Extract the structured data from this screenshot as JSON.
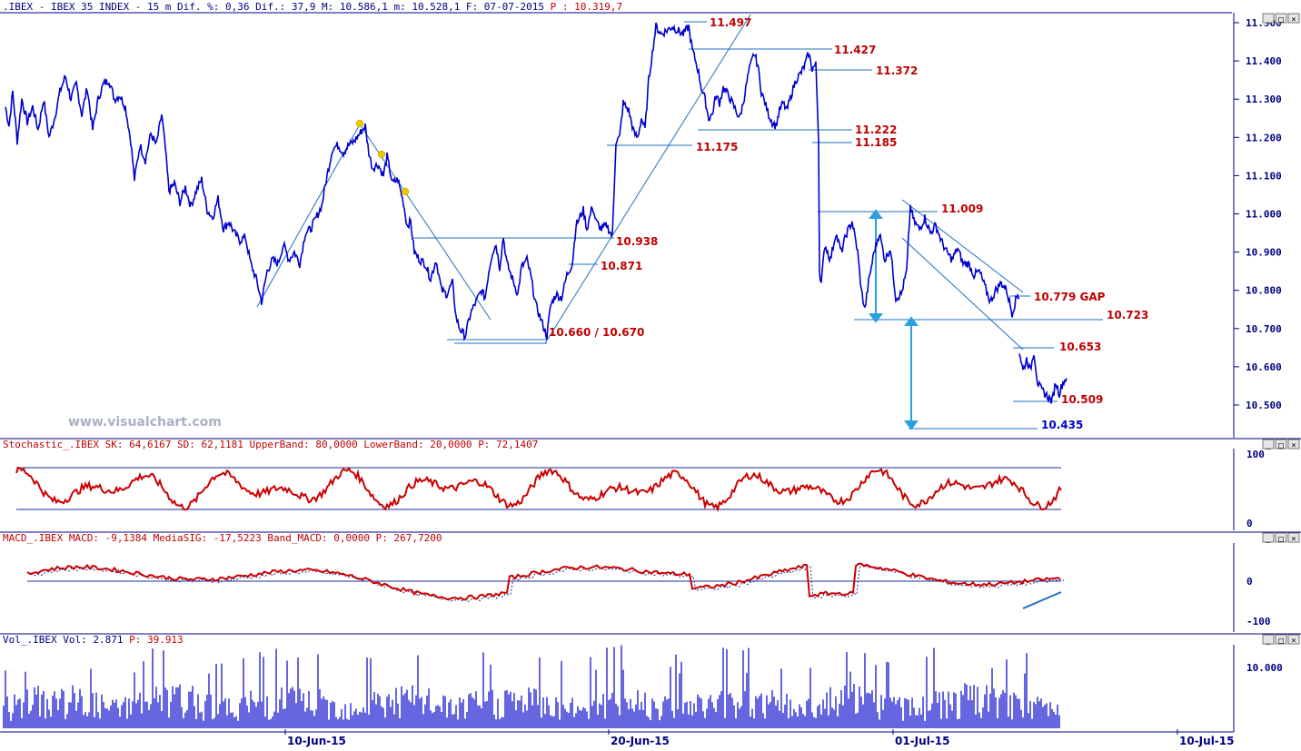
{
  "colors": {
    "price": "#0000cc",
    "ind": "#cc0000",
    "line": "#1f6fbf",
    "axis": "#000080",
    "annot": "#c00000",
    "arrow": "#2aa0e0",
    "pivot": "#e8c800"
  },
  "header": {
    "main": ".IBEX - IBEX 35 INDEX -  15 m Dif. %: 0,36 Dif.: 37,9 M: 10.586,1 m: 10.528,1 F: 07-07-2015",
    "main_p": "P : 10.319,7"
  },
  "watermark": "www.visualchart.com",
  "window_buttons": [
    "_",
    "□",
    "×"
  ],
  "price_axis": [
    "11.500",
    "11.400",
    "11.300",
    "11.200",
    "11.100",
    "11.000",
    "10.900",
    "10.800",
    "10.700",
    "10.600",
    "10.500"
  ],
  "dates": [
    "10-Jun-15",
    "20-Jun-15",
    "01-Jul-15",
    "10-Jul-15"
  ],
  "annotations": {
    "a11497": "11.497",
    "a11427": "11.427",
    "a11372": "11.372",
    "a11222": "11.222",
    "a11185": "11.185",
    "a11175": "11.175",
    "a11009": "11.009",
    "a10938": "10.938",
    "a10871": "10.871",
    "a10779": "10.779 GAP",
    "a10723": "10.723",
    "a10660": "10.660 / 10.670",
    "a10653": "10.653",
    "a10509": "10.509",
    "a10435": "10.435"
  },
  "stoch": {
    "header": "Stochastic_.IBEX SK: 64,6167 SD: 62,1181 UpperBand: 80,0000 LowerBand: 20,0000",
    "p": "P: 72,1407",
    "ticks": [
      "100",
      "0"
    ]
  },
  "macd": {
    "header": "MACD_.IBEX MACD: -9,1384 MediaSIG: -17,5223 Band_MACD: 0,0000",
    "p": "P: 267,7200",
    "ticks": [
      "0",
      "-100"
    ]
  },
  "vol": {
    "header": "Vol_.IBEX Vol: 2.871",
    "p": "P: 39.913",
    "ticks": [
      "10.000"
    ]
  },
  "chart_data": {
    "type": "line",
    "instrument": "IBEX 35 INDEX",
    "interval": "15 m",
    "x_ticks": [
      "10-Jun-15",
      "20-Jun-15",
      "01-Jul-15",
      "10-Jul-15"
    ],
    "ylim": [
      10420,
      11520
    ],
    "y_ticks": [
      11500,
      11400,
      11300,
      11200,
      11100,
      11000,
      10900,
      10800,
      10700,
      10600,
      10500
    ],
    "series": [
      {
        "values": [
          [
            0,
            11280
          ],
          [
            4,
            11230
          ],
          [
            8,
            11320
          ],
          [
            13,
            11190
          ],
          [
            18,
            11300
          ],
          [
            24,
            11240
          ],
          [
            30,
            11280
          ],
          [
            36,
            11220
          ],
          [
            42,
            11300
          ],
          [
            48,
            11200
          ],
          [
            54,
            11250
          ],
          [
            60,
            11320
          ],
          [
            66,
            11360
          ],
          [
            72,
            11300
          ],
          [
            78,
            11340
          ],
          [
            84,
            11260
          ],
          [
            90,
            11330
          ],
          [
            96,
            11220
          ],
          [
            102,
            11300
          ],
          [
            108,
            11340
          ],
          [
            114,
            11350
          ],
          [
            120,
            11300
          ],
          [
            126,
            11310
          ],
          [
            132,
            11280
          ],
          [
            138,
            11190
          ],
          [
            142,
            11090
          ],
          [
            148,
            11180
          ],
          [
            154,
            11140
          ],
          [
            160,
            11210
          ],
          [
            166,
            11180
          ],
          [
            172,
            11260
          ],
          [
            176,
            11170
          ],
          [
            180,
            11060
          ],
          [
            186,
            11080
          ],
          [
            192,
            11030
          ],
          [
            198,
            11070
          ],
          [
            204,
            11020
          ],
          [
            210,
            11060
          ],
          [
            216,
            11090
          ],
          [
            222,
            11010
          ],
          [
            228,
            10990
          ],
          [
            234,
            11040
          ],
          [
            240,
            10960
          ],
          [
            246,
            10980
          ],
          [
            252,
            10950
          ],
          [
            258,
            10930
          ],
          [
            264,
            10940
          ],
          [
            270,
            10870
          ],
          [
            276,
            10830
          ],
          [
            282,
            10770
          ],
          [
            288,
            10850
          ],
          [
            294,
            10880
          ],
          [
            300,
            10870
          ],
          [
            306,
            10920
          ],
          [
            312,
            10880
          ],
          [
            318,
            10900
          ],
          [
            324,
            10870
          ],
          [
            330,
            10950
          ],
          [
            336,
            10960
          ],
          [
            342,
            10990
          ],
          [
            348,
            11020
          ],
          [
            354,
            11100
          ],
          [
            360,
            11170
          ],
          [
            366,
            11180
          ],
          [
            372,
            11160
          ],
          [
            378,
            11180
          ],
          [
            384,
            11190
          ],
          [
            390,
            11210
          ],
          [
            396,
            11230
          ],
          [
            400,
            11160
          ],
          [
            404,
            11120
          ],
          [
            410,
            11130
          ],
          [
            416,
            11100
          ],
          [
            420,
            11150
          ],
          [
            426,
            11080
          ],
          [
            432,
            11090
          ],
          [
            438,
            11030
          ],
          [
            442,
            10970
          ],
          [
            446,
            10980
          ],
          [
            450,
            10900
          ],
          [
            456,
            10880
          ],
          [
            462,
            10870
          ],
          [
            468,
            10830
          ],
          [
            474,
            10880
          ],
          [
            480,
            10800
          ],
          [
            486,
            10790
          ],
          [
            492,
            10820
          ],
          [
            496,
            10730
          ],
          [
            500,
            10700
          ],
          [
            506,
            10680
          ],
          [
            512,
            10740
          ],
          [
            518,
            10770
          ],
          [
            524,
            10800
          ],
          [
            528,
            10780
          ],
          [
            532,
            10850
          ],
          [
            536,
            10900
          ],
          [
            540,
            10920
          ],
          [
            544,
            10860
          ],
          [
            548,
            10940
          ],
          [
            552,
            10870
          ],
          [
            558,
            10830
          ],
          [
            564,
            10790
          ],
          [
            568,
            10860
          ],
          [
            574,
            10880
          ],
          [
            578,
            10840
          ],
          [
            584,
            10760
          ],
          [
            590,
            10720
          ],
          [
            596,
            10680
          ],
          [
            600,
            10760
          ],
          [
            606,
            10790
          ],
          [
            612,
            10780
          ],
          [
            618,
            10840
          ],
          [
            624,
            10870
          ],
          [
            628,
            10970
          ],
          [
            632,
            10990
          ],
          [
            636,
            11010
          ],
          [
            640,
            10960
          ],
          [
            646,
            11020
          ],
          [
            650,
            10980
          ],
          [
            656,
            10960
          ],
          [
            662,
            10970
          ],
          [
            668,
            10940
          ],
          [
            672,
            11190
          ],
          [
            676,
            11200
          ],
          [
            680,
            11290
          ],
          [
            686,
            11270
          ],
          [
            692,
            11210
          ],
          [
            696,
            11200
          ],
          [
            700,
            11250
          ],
          [
            704,
            11220
          ],
          [
            708,
            11350
          ],
          [
            712,
            11420
          ],
          [
            716,
            11490
          ],
          [
            722,
            11470
          ],
          [
            728,
            11480
          ],
          [
            734,
            11490
          ],
          [
            740,
            11480
          ],
          [
            746,
            11470
          ],
          [
            752,
            11490
          ],
          [
            756,
            11430
          ],
          [
            762,
            11380
          ],
          [
            766,
            11330
          ],
          [
            770,
            11300
          ],
          [
            774,
            11250
          ],
          [
            778,
            11260
          ],
          [
            782,
            11310
          ],
          [
            786,
            11290
          ],
          [
            790,
            11330
          ],
          [
            796,
            11310
          ],
          [
            802,
            11280
          ],
          [
            808,
            11250
          ],
          [
            812,
            11290
          ],
          [
            818,
            11370
          ],
          [
            824,
            11420
          ],
          [
            828,
            11390
          ],
          [
            832,
            11320
          ],
          [
            836,
            11290
          ],
          [
            840,
            11260
          ],
          [
            844,
            11240
          ],
          [
            848,
            11230
          ],
          [
            852,
            11270
          ],
          [
            856,
            11290
          ],
          [
            860,
            11270
          ],
          [
            866,
            11320
          ],
          [
            870,
            11350
          ],
          [
            876,
            11370
          ],
          [
            880,
            11390
          ],
          [
            884,
            11420
          ],
          [
            888,
            11380
          ],
          [
            892,
            11390
          ],
          [
            895,
            11200
          ],
          [
            896,
            10850
          ],
          [
            898,
            10820
          ],
          [
            902,
            10920
          ],
          [
            908,
            10880
          ],
          [
            914,
            10950
          ],
          [
            920,
            10900
          ],
          [
            926,
            10950
          ],
          [
            932,
            10980
          ],
          [
            938,
            10900
          ],
          [
            942,
            10800
          ],
          [
            946,
            10750
          ],
          [
            950,
            10820
          ],
          [
            956,
            10900
          ],
          [
            962,
            10950
          ],
          [
            968,
            10880
          ],
          [
            974,
            10910
          ],
          [
            980,
            10780
          ],
          [
            986,
            10790
          ],
          [
            992,
            10850
          ],
          [
            996,
            11020
          ],
          [
            1000,
            10980
          ],
          [
            1006,
            10960
          ],
          [
            1012,
            10990
          ],
          [
            1018,
            10950
          ],
          [
            1024,
            10970
          ],
          [
            1030,
            10930
          ],
          [
            1036,
            10900
          ],
          [
            1042,
            10880
          ],
          [
            1048,
            10910
          ],
          [
            1054,
            10870
          ],
          [
            1060,
            10870
          ],
          [
            1066,
            10840
          ],
          [
            1072,
            10850
          ],
          [
            1078,
            10810
          ],
          [
            1084,
            10770
          ],
          [
            1090,
            10800
          ],
          [
            1096,
            10820
          ],
          [
            1102,
            10800
          ],
          [
            1108,
            10740
          ],
          [
            1114,
            10790
          ],
          [
            1116,
            10780
          ]
        ]
      },
      {
        "values": [
          [
            1116,
            10640
          ],
          [
            1120,
            10590
          ],
          [
            1124,
            10620
          ],
          [
            1128,
            10590
          ],
          [
            1132,
            10640
          ],
          [
            1136,
            10560
          ],
          [
            1140,
            10540
          ],
          [
            1144,
            10530
          ],
          [
            1148,
            10520
          ],
          [
            1152,
            10510
          ],
          [
            1156,
            10560
          ],
          [
            1160,
            10530
          ],
          [
            1164,
            10560
          ],
          [
            1168,
            10570
          ]
        ]
      }
    ]
  }
}
